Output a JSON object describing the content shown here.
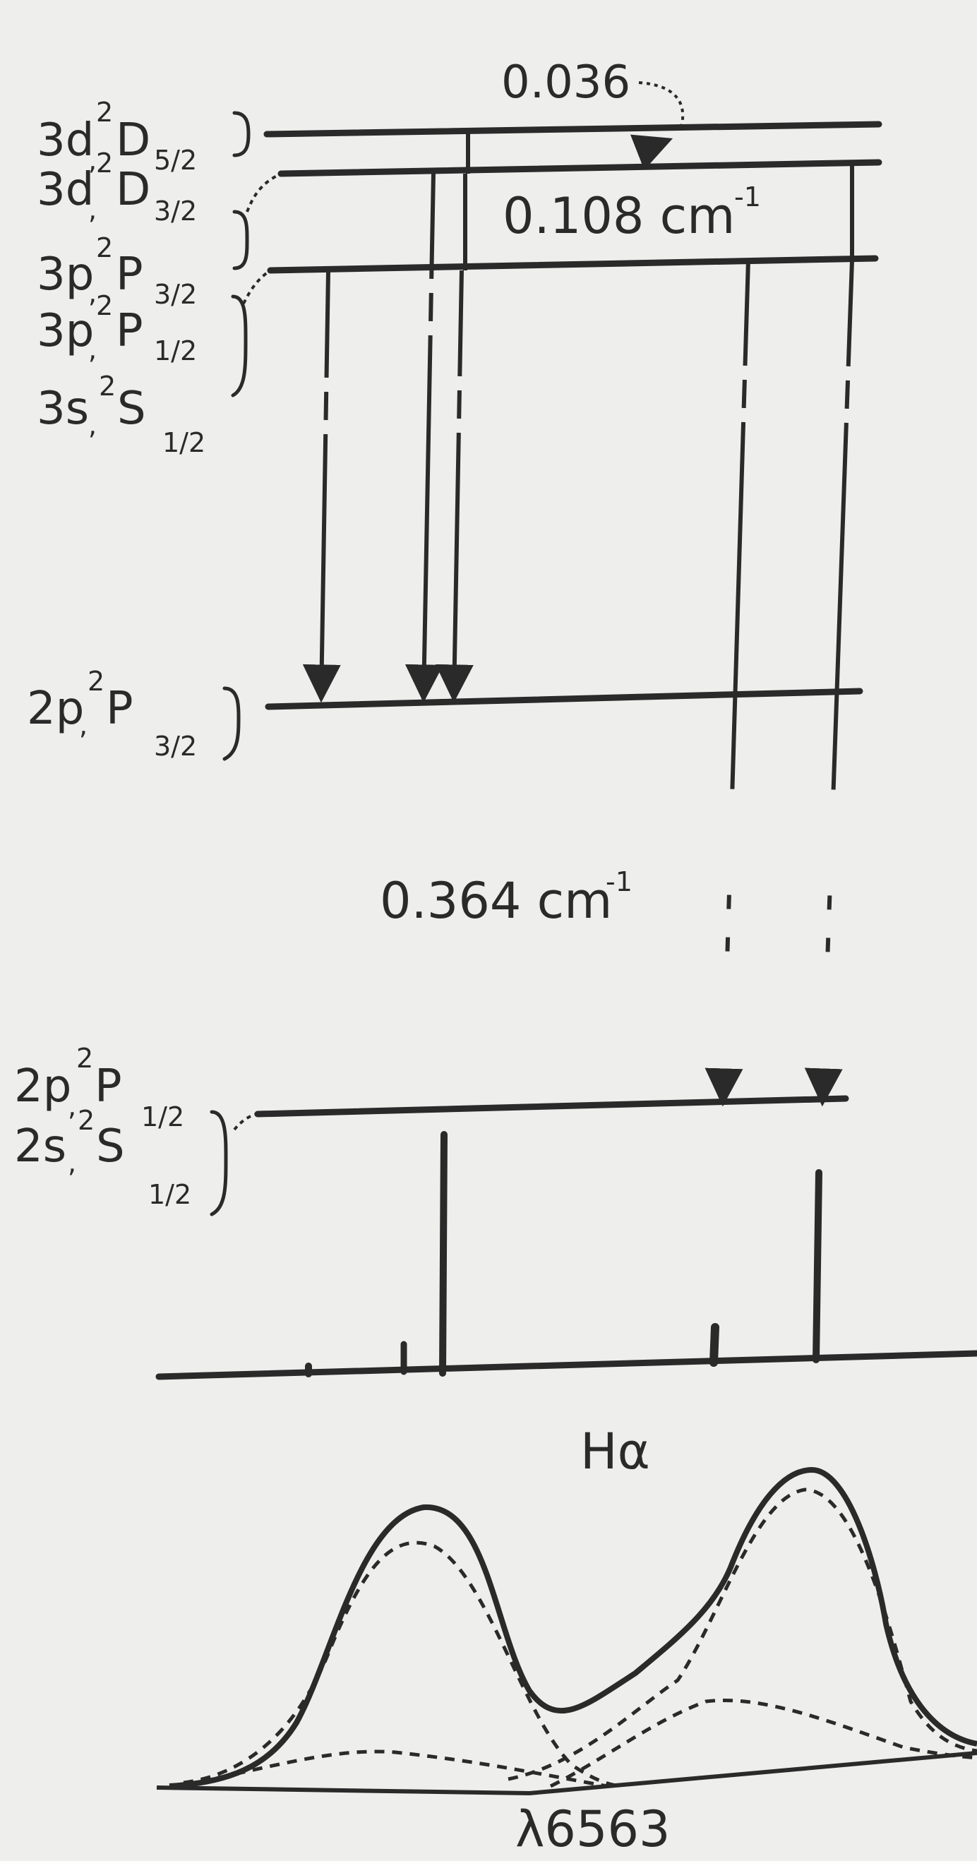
{
  "figure": {
    "spacing_top": "0.036",
    "spacing_upper": "0.108 cm",
    "spacing_upper_exp": "-1",
    "spacing_middle": "0.364 cm",
    "spacing_middle_exp": "-1",
    "profile_label": "Hα",
    "wavelength_label": "λ6563"
  },
  "levels": {
    "l3d52": {
      "term": "3d",
      "sub_n": ",",
      "sup": "2",
      "sym": "D",
      "j": "5/2"
    },
    "l3d32": {
      "term": "3d",
      "sub_n": ",",
      "sup": "2",
      "sym": "D",
      "j": "3/2"
    },
    "l3p32": {
      "term": "3p",
      "sub_n": ",",
      "sup": "2",
      "sym": "P",
      "j": "3/2"
    },
    "l3p12": {
      "term": "3p",
      "sub_n": ",",
      "sup": "2",
      "sym": "P",
      "j": "1/2"
    },
    "l3s12": {
      "term": "3s",
      "sub_n": ",",
      "sup": "2",
      "sym": "S",
      "j": "1/2"
    },
    "l2p32": {
      "term": "2p",
      "sub_n": ",",
      "sup": "2",
      "sym": "P",
      "j": "3/2"
    },
    "l2p12": {
      "term": "2p",
      "sub_n": ",",
      "sup": "2",
      "sym": "P",
      "j": "1/2"
    },
    "l2s12": {
      "term": "2s",
      "sub_n": ",",
      "sup": "2",
      "sym": "S",
      "j": "1/2"
    }
  },
  "colors": {
    "ink": "#2a2a2a",
    "paper": "#eeeeec"
  }
}
